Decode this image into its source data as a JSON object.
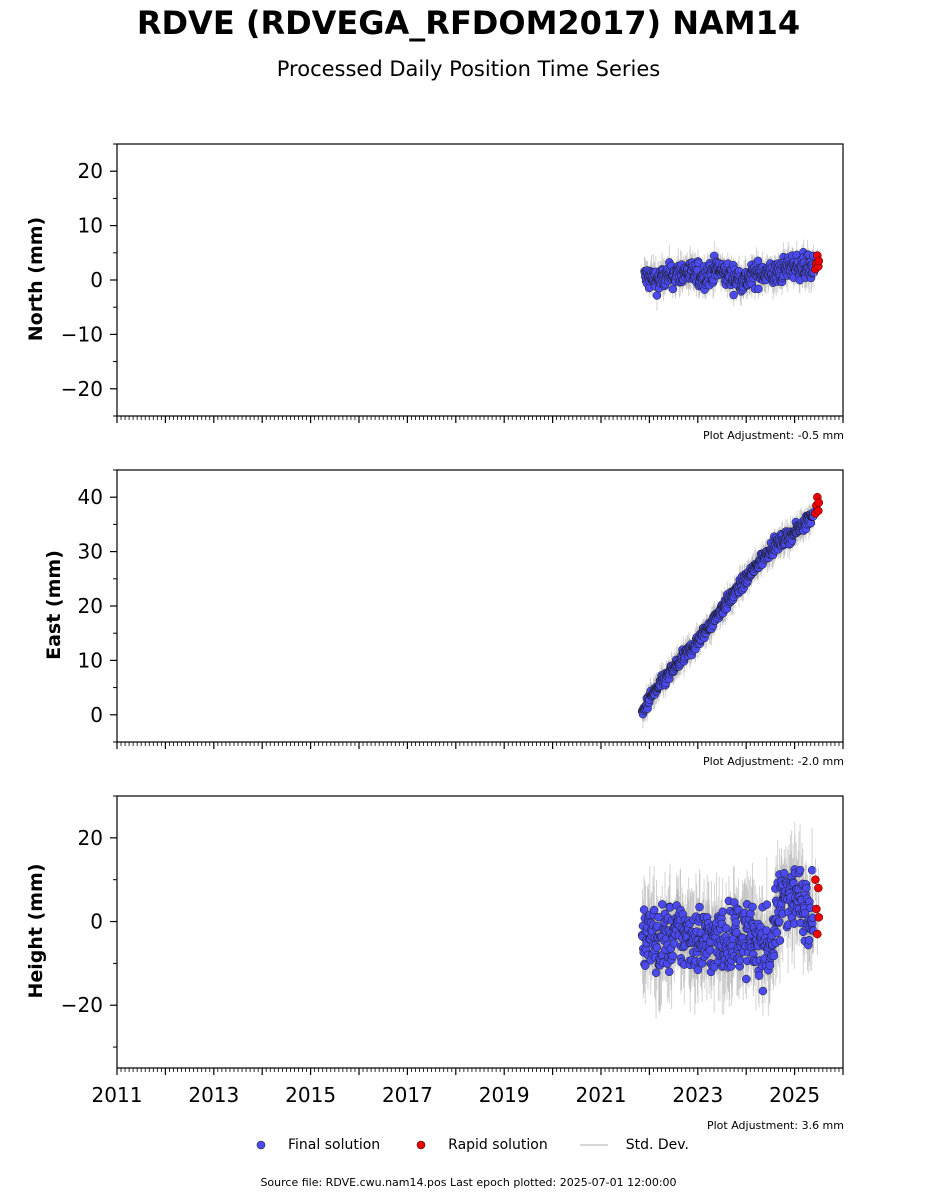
{
  "title": "RDVE (RDVEGA_RFDOM2017) NAM14",
  "subtitle": "Processed Daily Position Time Series",
  "legend": {
    "final_label": "Final solution",
    "rapid_label": "Rapid solution",
    "std_label": "Std. Dev."
  },
  "colors": {
    "final": "#4a4af0",
    "rapid": "#ee0000",
    "std": "#b0b0b0"
  },
  "footer": "Source file: RDVE.cwu.nam14.pos  Last epoch plotted: 2025-07-01 12:00:00",
  "chart_data": [
    {
      "type": "scatter",
      "ylabel": "North (mm)",
      "adjustment": "Plot Adjustment: -0.5 mm",
      "ylim": [
        -25,
        25
      ],
      "yticks": [
        -20,
        -10,
        0,
        10,
        20
      ],
      "ytick_labels": [
        "−20",
        "−10",
        "0",
        "10",
        "20"
      ],
      "xlim": [
        2011.0,
        2026.0
      ],
      "show_xtick_labels": false,
      "grid": false,
      "series_final": {
        "x": [
          2021.9,
          2022.2,
          2022.5,
          2022.8,
          2023.1,
          2023.4,
          2023.7,
          2024.0,
          2024.3,
          2024.6,
          2024.9,
          2025.2,
          2025.4
        ],
        "y": [
          0.5,
          0.0,
          1.0,
          1.5,
          0.5,
          2.0,
          0.5,
          0.0,
          1.5,
          1.0,
          2.5,
          2.5,
          2.0
        ],
        "spread": 2.2,
        "err": 2.2
      },
      "series_rapid": {
        "x": [
          2025.43,
          2025.45,
          2025.47,
          2025.49,
          2025.5
        ],
        "y": [
          2.0,
          3.0,
          4.5,
          2.5,
          3.5
        ],
        "spread": 1.2
      }
    },
    {
      "type": "scatter",
      "ylabel": "East (mm)",
      "adjustment": "Plot Adjustment: -2.0 mm",
      "ylim": [
        -5,
        45
      ],
      "yticks": [
        0,
        10,
        20,
        30,
        40
      ],
      "ytick_labels": [
        "0",
        "10",
        "20",
        "30",
        "40"
      ],
      "xlim": [
        2011.0,
        2026.0
      ],
      "show_xtick_labels": false,
      "grid": false,
      "series_final": {
        "x": [
          2021.85,
          2022.0,
          2022.5,
          2023.0,
          2023.5,
          2024.0,
          2024.5,
          2025.0,
          2025.4
        ],
        "y": [
          0.0,
          3.0,
          8.5,
          13.5,
          19.5,
          25.0,
          30.5,
          33.5,
          37.0
        ],
        "spread": 1.2,
        "err": 2.0
      },
      "series_rapid": {
        "x": [
          2025.43,
          2025.45,
          2025.47,
          2025.49,
          2025.5
        ],
        "y": [
          37.0,
          38.5,
          40.0,
          37.5,
          39.0
        ],
        "spread": 1.0
      }
    },
    {
      "type": "scatter",
      "ylabel": "Height (mm)",
      "adjustment": "Plot Adjustment: 3.6 mm",
      "ylim": [
        -35,
        30
      ],
      "yticks": [
        -20,
        0,
        20
      ],
      "ytick_labels": [
        "−20",
        "0",
        "20"
      ],
      "xlim": [
        2011.0,
        2026.0
      ],
      "xticks": [
        2011,
        2013,
        2015,
        2017,
        2019,
        2021,
        2023,
        2025
      ],
      "xtick_labels": [
        "2011",
        "2013",
        "2015",
        "2017",
        "2019",
        "2021",
        "2023",
        "2025"
      ],
      "show_xtick_labels": true,
      "grid": false,
      "series_final": {
        "x": [
          2021.85,
          2022.2,
          2022.6,
          2023.0,
          2023.4,
          2023.8,
          2024.2,
          2024.5,
          2024.8,
          2025.1,
          2025.4
        ],
        "y": [
          -3.0,
          -5.0,
          -3.0,
          -4.0,
          -5.0,
          -3.0,
          -5.0,
          -6.0,
          8.0,
          5.0,
          3.0
        ],
        "spread": 8.0,
        "err": 8.0
      },
      "series_rapid": {
        "x": [
          2025.43,
          2025.45,
          2025.47,
          2025.49,
          2025.5
        ],
        "y": [
          10.0,
          3.0,
          -3.0,
          8.0,
          1.0
        ],
        "spread": 5.0
      }
    }
  ]
}
